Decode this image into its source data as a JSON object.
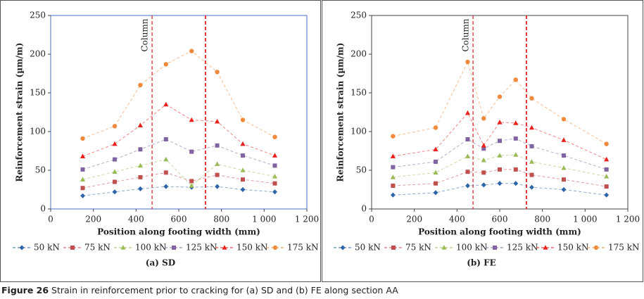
{
  "chart_data": [
    {
      "type": "line",
      "subtitle": "(a) SD",
      "xlabel": "Position along footing width (mm)",
      "ylabel": "Reinforcement strain (µm/m)",
      "annotation": "Column",
      "vlines": [
        475,
        725
      ],
      "frame_color": "#4a6fc0",
      "xlim": [
        0,
        1200
      ],
      "ylim": [
        0,
        250
      ],
      "xticks": [
        0,
        200,
        400,
        600,
        800,
        {
          "value": 1000,
          "label": "1 000"
        },
        {
          "value": 1200,
          "label": "1 200"
        }
      ],
      "yticks": [
        0,
        50,
        100,
        150,
        200,
        250
      ],
      "x": [
        150,
        300,
        420,
        540,
        660,
        780,
        900,
        1050
      ],
      "series": [
        {
          "name": "50 kN",
          "color": "#2e64a8",
          "marker": "diamond",
          "values": [
            17,
            22,
            26,
            29,
            28,
            29,
            25,
            22
          ]
        },
        {
          "name": "75 kN",
          "color": "#c0504d",
          "marker": "square",
          "values": [
            27,
            35,
            41,
            47,
            36,
            44,
            38,
            33
          ]
        },
        {
          "name": "100 kN",
          "color": "#9bbb59",
          "marker": "triangle",
          "values": [
            38,
            48,
            56,
            64,
            30,
            58,
            50,
            42
          ]
        },
        {
          "name": "125 kN",
          "color": "#8064a2",
          "marker": "square",
          "values": [
            51,
            64,
            77,
            90,
            74,
            82,
            69,
            56
          ]
        },
        {
          "name": "150 kN",
          "color": "#e8231e",
          "marker": "triangle",
          "values": [
            68,
            84,
            108,
            135,
            115,
            113,
            84,
            69
          ]
        },
        {
          "name": "175 kN",
          "color": "#f08a3c",
          "marker": "circle",
          "values": [
            91,
            107,
            160,
            187,
            204,
            177,
            115,
            93
          ]
        }
      ]
    },
    {
      "type": "line",
      "subtitle": "(b) FE",
      "xlabel": "Position along footing width (mm)",
      "ylabel": "Reinforcement strain (µm/m)",
      "annotation": "Column",
      "vlines": [
        475,
        725
      ],
      "frame_color": "#444444",
      "xlim": [
        0,
        1200
      ],
      "ylim": [
        0,
        250
      ],
      "xticks": [
        0,
        200,
        400,
        600,
        800,
        {
          "value": 1000,
          "label": "1 000"
        },
        {
          "value": 1200,
          "label": "1 200"
        }
      ],
      "yticks": [
        0,
        50,
        100,
        150,
        200,
        250
      ],
      "x": [
        100,
        300,
        450,
        525,
        600,
        675,
        750,
        900,
        1100
      ],
      "series": [
        {
          "name": "50 kN",
          "color": "#2e64a8",
          "marker": "diamond",
          "values": [
            18,
            21,
            30,
            31,
            33,
            33,
            28,
            25,
            18
          ]
        },
        {
          "name": "75 kN",
          "color": "#c0504d",
          "marker": "square",
          "values": [
            30,
            33,
            48,
            47,
            51,
            51,
            44,
            38,
            29
          ]
        },
        {
          "name": "100 kN",
          "color": "#9bbb59",
          "marker": "triangle",
          "values": [
            41,
            47,
            68,
            63,
            69,
            70,
            61,
            53,
            42
          ]
        },
        {
          "name": "125 kN",
          "color": "#8064a2",
          "marker": "square",
          "values": [
            54,
            61,
            90,
            78,
            88,
            91,
            81,
            69,
            51
          ]
        },
        {
          "name": "150 kN",
          "color": "#e8231e",
          "marker": "triangle",
          "values": [
            68,
            77,
            124,
            82,
            112,
            111,
            105,
            89,
            64
          ]
        },
        {
          "name": "175 kN",
          "color": "#f08a3c",
          "marker": "circle",
          "values": [
            94,
            105,
            190,
            117,
            145,
            167,
            143,
            116,
            84
          ]
        }
      ]
    }
  ],
  "caption": {
    "label": "Figure 26",
    "text": "Strain in reinforcement prior to cracking for (a) SD and (b) FE along section AA"
  }
}
